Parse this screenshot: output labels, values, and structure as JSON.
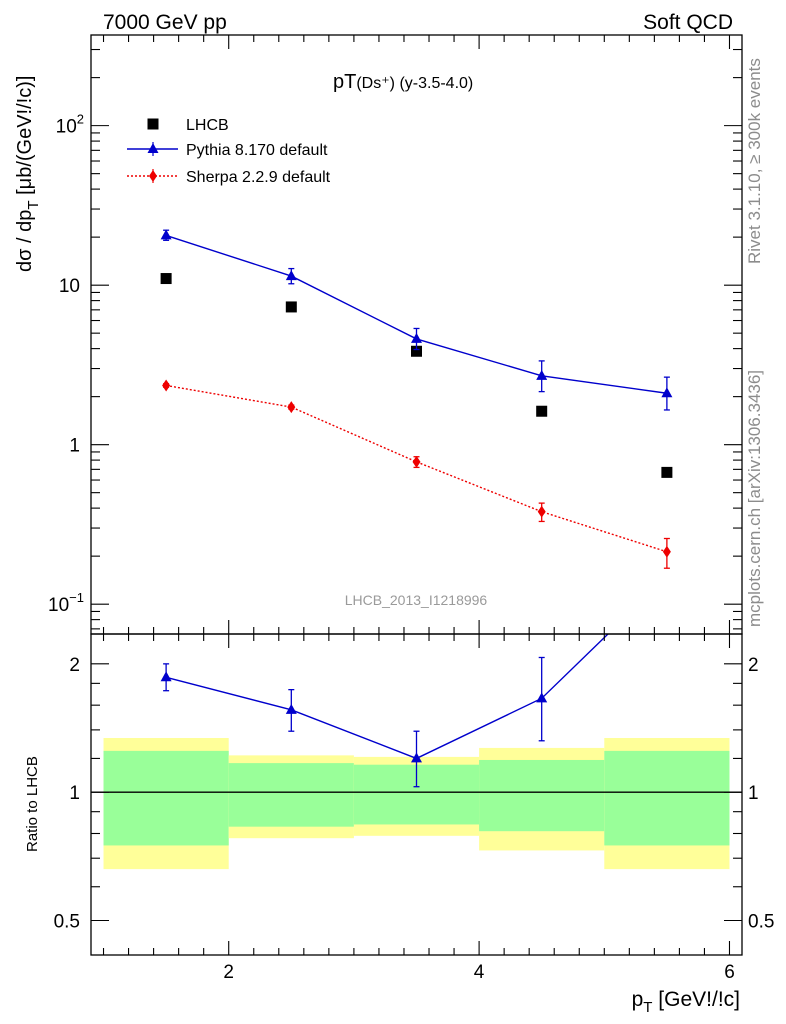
{
  "header": {
    "left": "7000 GeV pp",
    "right": "Soft QCD"
  },
  "side_labels": {
    "rivet": "Rivet 3.1.10, ≥ 300k events",
    "source": "mcplots.cern.ch [arXiv:1306.3436]"
  },
  "chart_data": {
    "type": "scatter",
    "title": "pT(Ds⁺) (y-3.5-4.0)",
    "title_parts": {
      "main": "pT",
      "sub": "(Ds⁺) (y-3.5-4.0)"
    },
    "analysis_id": "LHCB_2013_I1218996",
    "xlabel": "p_T [GeV!/!c]",
    "xlabel_parts": {
      "p": "p",
      "sub": "T",
      "rest": " [GeV!/!c]"
    },
    "ylabel": "dσ / dp_T [μb/(GeV!/!c)]",
    "ylabel_parts": {
      "pre": "dσ / dp",
      "sub": "T",
      "post": " [μb/(GeV!/!c)]"
    },
    "xlim": [
      0.9,
      6.1
    ],
    "ylim": [
      0.065,
      370
    ],
    "y_scale": "log",
    "x_ticks": [
      "2",
      "4",
      "6"
    ],
    "y_tick_labels": [
      {
        "base": "10",
        "exp": "2",
        "v": 100
      },
      {
        "base": "10",
        "exp": "",
        "v": 10
      },
      {
        "base": "1",
        "exp": "",
        "v": 1
      },
      {
        "base": "10",
        "exp": "−1",
        "v": 0.1
      }
    ],
    "legend_placement": "top-left",
    "series": [
      {
        "name": "LHCB",
        "kind": "data",
        "color": "#000000",
        "marker": "square",
        "x": [
          1.5,
          2.5,
          3.5,
          4.5,
          5.5
        ],
        "y": [
          11.0,
          7.3,
          3.85,
          1.62,
          0.67
        ],
        "xlow": [
          1,
          2,
          3,
          4,
          5
        ],
        "xhigh": [
          2,
          3,
          4,
          5,
          6
        ],
        "stat_rel": [
          0.25,
          0.17,
          0.16,
          0.19,
          0.25
        ],
        "tot_rel": [
          0.34,
          0.22,
          0.21,
          0.27,
          0.34
        ]
      },
      {
        "name": "Pythia 8.170 default",
        "kind": "mc",
        "color": "#0000cc",
        "marker": "triangle",
        "line": "solid",
        "x": [
          1.5,
          2.5,
          3.5,
          4.5,
          5.5
        ],
        "y": [
          20.5,
          11.4,
          4.6,
          2.7,
          2.1
        ],
        "yerr_lo": [
          1.4,
          1.2,
          0.65,
          0.55,
          0.45
        ],
        "yerr_hi": [
          1.6,
          1.3,
          0.75,
          0.65,
          0.55
        ]
      },
      {
        "name": "Sherpa 2.2.9 default",
        "kind": "mc",
        "color": "#ee0000",
        "marker": "diamond",
        "line": "dotted",
        "x": [
          1.5,
          2.5,
          3.5,
          4.5,
          5.5
        ],
        "y": [
          2.35,
          1.72,
          0.78,
          0.38,
          0.213
        ],
        "yerr_lo": [
          0.06,
          0.05,
          0.06,
          0.05,
          0.045
        ],
        "yerr_hi": [
          0.06,
          0.05,
          0.06,
          0.05,
          0.045
        ]
      }
    ],
    "ratio": {
      "ylabel": "Ratio to LHCB",
      "ylim": [
        0.415,
        2.35
      ],
      "y_scale": "log",
      "y_ticks": [
        "0.5",
        "1",
        "2"
      ],
      "reference_line": 1,
      "series": [
        {
          "name": "Pythia 8.170 default",
          "color": "#0000cc",
          "x": [
            1.5,
            2.5,
            3.5,
            4.5,
            5.5
          ],
          "y": [
            1.86,
            1.56,
            1.2,
            1.66,
            3.2
          ],
          "yerr_lo": [
            0.13,
            0.17,
            0.17,
            0.34,
            0.6
          ],
          "yerr_hi": [
            0.14,
            0.18,
            0.19,
            0.41,
            0.7
          ]
        }
      ]
    }
  }
}
